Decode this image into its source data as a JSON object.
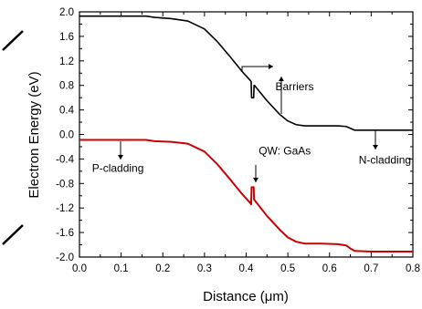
{
  "chart_data": {
    "type": "line",
    "title": "",
    "xlabel": "Distance (μm)",
    "ylabel": "Electron Energy (eV)",
    "xlim": [
      0.0,
      0.8
    ],
    "ylim": [
      -2.0,
      2.0
    ],
    "x_ticks": [
      "0.0",
      "0.1",
      "0.2",
      "0.3",
      "0.4",
      "0.5",
      "0.6",
      "0.7",
      "0.8"
    ],
    "y_ticks": [
      "2.0",
      "1.6",
      "1.2",
      "0.8",
      "0.4",
      "0.0",
      "-0.4",
      "-0.8",
      "-1.2",
      "-1.6",
      "-2.0"
    ],
    "grid": false,
    "series": [
      {
        "color": "#000000",
        "x": [
          0.0,
          0.1,
          0.16,
          0.18,
          0.22,
          0.26,
          0.3,
          0.33,
          0.36,
          0.39,
          0.41,
          0.412,
          0.413,
          0.415,
          0.418,
          0.419,
          0.42,
          0.45,
          0.48,
          0.5,
          0.52,
          0.54,
          0.58,
          0.62,
          0.64,
          0.65,
          0.66,
          0.7,
          0.8
        ],
        "y": [
          1.93,
          1.93,
          1.93,
          1.91,
          1.89,
          1.85,
          1.72,
          1.52,
          1.28,
          1.03,
          0.88,
          0.86,
          0.6,
          0.6,
          0.6,
          0.8,
          0.8,
          0.55,
          0.33,
          0.22,
          0.16,
          0.14,
          0.14,
          0.14,
          0.13,
          0.1,
          0.07,
          0.07,
          0.07
        ]
      },
      {
        "color": "#cc0000",
        "x": [
          0.0,
          0.1,
          0.16,
          0.18,
          0.22,
          0.26,
          0.3,
          0.33,
          0.36,
          0.39,
          0.41,
          0.412,
          0.413,
          0.415,
          0.418,
          0.419,
          0.42,
          0.45,
          0.48,
          0.5,
          0.52,
          0.54,
          0.58,
          0.62,
          0.64,
          0.65,
          0.66,
          0.7,
          0.8
        ],
        "y": [
          -0.09,
          -0.09,
          -0.09,
          -0.11,
          -0.12,
          -0.15,
          -0.28,
          -0.48,
          -0.72,
          -0.97,
          -1.12,
          -1.14,
          -0.86,
          -0.86,
          -0.86,
          -1.06,
          -1.07,
          -1.33,
          -1.55,
          -1.68,
          -1.75,
          -1.78,
          -1.78,
          -1.79,
          -1.81,
          -1.86,
          -1.9,
          -1.91,
          -1.91
        ]
      }
    ],
    "annotations": [
      {
        "text": "Barriers",
        "x": 0.47,
        "y": 0.78
      },
      {
        "text": "QW: GaAs",
        "x": 0.43,
        "y": -0.27
      },
      {
        "text": "P-cladding",
        "x": 0.03,
        "y": -0.55
      },
      {
        "text": "N-cladding",
        "x": 0.67,
        "y": -0.42
      }
    ]
  }
}
